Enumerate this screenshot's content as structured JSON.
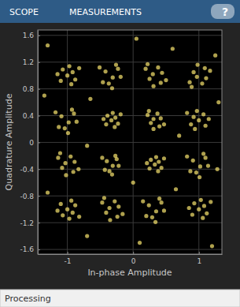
{
  "toolbar": {
    "tabs": [
      "SCOPE",
      "MEASUREMENTS"
    ],
    "help": "?"
  },
  "status_bar": {
    "text": "Processing"
  },
  "chart_data": {
    "type": "scatter",
    "xlabel": "In-phase Amplitude",
    "ylabel": "Quadrature Amplitude",
    "xlim": [
      -1.45,
      1.35
    ],
    "ylim": [
      -1.67,
      1.68
    ],
    "xticks": [
      -1,
      0,
      1
    ],
    "yticks": [
      -1.6,
      -1.2,
      -0.8,
      -0.4,
      0,
      0.4,
      0.8,
      1.2,
      1.6
    ],
    "grid": true,
    "color": "#f3df6c",
    "marker": "circle",
    "x": [
      -1.0,
      -0.92,
      -1.07,
      -0.88,
      -1.1,
      -0.97,
      -1.15,
      -0.94,
      -0.82,
      -0.31,
      -0.42,
      -0.23,
      -0.37,
      -0.19,
      -0.46,
      -0.26,
      -0.51,
      -0.32,
      0.3,
      0.44,
      0.25,
      0.38,
      0.42,
      0.19,
      0.31,
      0.5,
      0.22,
      0.97,
      1.11,
      0.92,
      1.05,
      1.09,
      0.86,
      0.98,
      1.17,
      0.89,
      -0.98,
      -1.09,
      -0.9,
      -1.04,
      -0.86,
      -1.13,
      -0.93,
      -1.18,
      -0.99,
      -0.33,
      -0.27,
      -0.39,
      -0.23,
      -0.41,
      -0.31,
      -0.45,
      -0.28,
      -0.19,
      0.31,
      0.42,
      0.27,
      0.37,
      0.4,
      0.22,
      0.31,
      0.47,
      0.24,
      1.0,
      0.92,
      1.07,
      0.88,
      1.1,
      0.97,
      1.15,
      0.94,
      0.82,
      -1.03,
      -0.89,
      -1.08,
      -0.95,
      -0.91,
      -1.14,
      -1.02,
      -0.83,
      -1.11,
      -0.31,
      -0.4,
      -0.25,
      -0.36,
      -0.22,
      -0.43,
      -0.27,
      -0.47,
      -0.32,
      0.33,
      0.39,
      0.27,
      0.43,
      0.25,
      0.35,
      0.21,
      0.38,
      0.47,
      1.02,
      0.91,
      1.1,
      0.96,
      1.14,
      0.87,
      1.07,
      0.82,
      1.01,
      -1.0,
      -0.92,
      -1.07,
      -0.88,
      -1.1,
      -0.97,
      -1.15,
      -0.94,
      -0.82,
      -0.36,
      -0.22,
      -0.41,
      -0.28,
      -0.24,
      -0.47,
      -0.35,
      -0.16,
      -0.44,
      0.35,
      0.24,
      0.43,
      0.29,
      0.47,
      0.2,
      0.4,
      0.15,
      0.34,
      1.0,
      1.08,
      0.93,
      1.12,
      0.9,
      1.03,
      0.85,
      1.06,
      1.18,
      -1.3,
      0.05,
      0.6,
      1.25,
      -1.35,
      -0.65,
      0.7,
      1.3,
      -0.7,
      0.0,
      -1.3,
      0.65,
      1.28,
      -0.7,
      0.1,
      1.2
    ],
    "y": [
      1.0,
      1.05,
      1.09,
      0.94,
      0.92,
      1.14,
      1.02,
      0.87,
      1.11,
      0.97,
      1.06,
      1.1,
      0.88,
      0.98,
      0.9,
      1.16,
      1.12,
      0.81,
      1.02,
      1.04,
      0.95,
      1.12,
      0.89,
      1.1,
      0.84,
      0.93,
      1.17,
      0.98,
      0.96,
      1.05,
      0.88,
      1.11,
      0.9,
      1.16,
      1.07,
      0.83,
      0.3,
      0.39,
      0.43,
      0.21,
      0.31,
      0.23,
      0.49,
      0.45,
      0.14,
      0.33,
      0.37,
      0.4,
      0.28,
      0.27,
      0.44,
      0.35,
      0.23,
      0.42,
      0.35,
      0.36,
      0.29,
      0.43,
      0.24,
      0.41,
      0.2,
      0.27,
      0.47,
      0.33,
      0.38,
      0.42,
      0.27,
      0.25,
      0.47,
      0.35,
      0.2,
      0.44,
      -0.31,
      -0.29,
      -0.38,
      -0.21,
      -0.44,
      -0.23,
      -0.49,
      -0.4,
      -0.16,
      -0.35,
      -0.28,
      -0.25,
      -0.43,
      -0.35,
      -0.41,
      -0.2,
      -0.23,
      -0.48,
      -0.33,
      -0.29,
      -0.26,
      -0.38,
      -0.39,
      -0.22,
      -0.31,
      -0.43,
      -0.24,
      -0.36,
      -0.27,
      -0.23,
      -0.45,
      -0.35,
      -0.43,
      -0.17,
      -0.21,
      -0.52,
      -1.0,
      -1.05,
      -1.09,
      -0.94,
      -0.92,
      -1.14,
      -1.02,
      -0.87,
      -1.11,
      -0.98,
      -0.96,
      -1.05,
      -0.88,
      -1.11,
      -0.9,
      -1.16,
      -1.07,
      -0.83,
      -1.03,
      -0.94,
      -0.9,
      -1.12,
      -1.02,
      -1.1,
      -0.84,
      -0.88,
      -1.19,
      -1.0,
      -0.95,
      -0.91,
      -1.06,
      -1.08,
      -0.86,
      -0.98,
      -1.13,
      -0.89,
      1.45,
      1.55,
      1.4,
      1.3,
      0.7,
      0.65,
      0.1,
      0.6,
      -0.05,
      -0.6,
      -0.75,
      -0.7,
      -0.4,
      -1.4,
      -1.5,
      -1.55
    ]
  }
}
